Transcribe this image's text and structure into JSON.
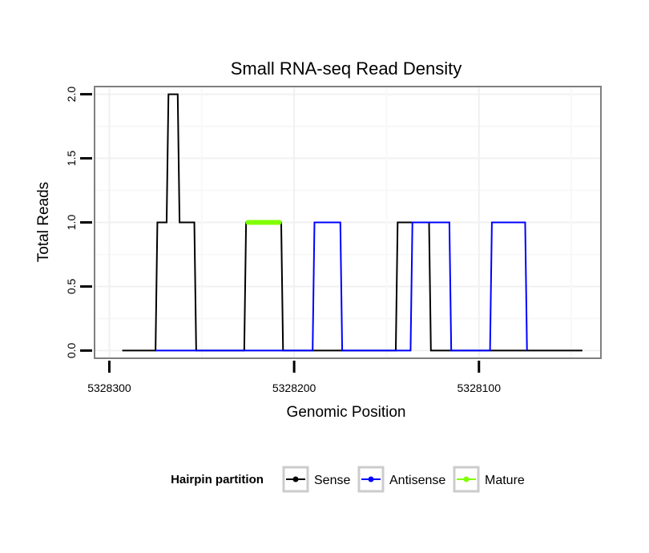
{
  "chart_data": {
    "type": "line",
    "title": "Small RNA-seq Read Density",
    "xlabel": "Genomic Position",
    "ylabel": "Total Reads",
    "xlim": [
      5328308,
      5328034
    ],
    "ylim": [
      -0.06,
      2.06
    ],
    "x_ticks": [
      5328300,
      5328200,
      5328100
    ],
    "x_tick_labels": [
      "5328300",
      "5328200",
      "5328100"
    ],
    "y_ticks": [
      0.0,
      0.5,
      1.0,
      1.5,
      2.0
    ],
    "y_tick_labels": [
      "0.0",
      "0.5",
      "1.0",
      "1.5",
      "2.0"
    ],
    "grid": true,
    "legend": {
      "title": "Hairpin partition",
      "position": "bottom",
      "entries": [
        "Sense",
        "Antisense",
        "Mature"
      ]
    },
    "series": [
      {
        "name": "Sense",
        "color": "#000000",
        "x": [
          5328293,
          5328275,
          5328274,
          5328269,
          5328268,
          5328263,
          5328262,
          5328254,
          5328253,
          5328227,
          5328226,
          5328207,
          5328206,
          5328150,
          5328149,
          5328145,
          5328144,
          5328127,
          5328126,
          5328044
        ],
        "y": [
          0,
          0,
          1,
          1,
          2,
          2,
          1,
          1,
          0,
          0,
          1,
          1,
          0,
          0,
          0,
          0,
          1,
          1,
          0,
          0
        ]
      },
      {
        "name": "Antisense",
        "color": "#0000ff",
        "x": [
          5328275,
          5328254,
          5328227,
          5328207,
          5328190,
          5328189,
          5328175,
          5328174,
          5328137,
          5328136,
          5328116,
          5328115,
          5328094,
          5328093,
          5328075,
          5328074
        ],
        "y": [
          0,
          0,
          0,
          0,
          0,
          1,
          1,
          0,
          0,
          1,
          1,
          0,
          0,
          1,
          1,
          0
        ]
      },
      {
        "name": "Mature",
        "color": "#7fff00",
        "x": [
          5328225,
          5328208
        ],
        "y": [
          1,
          1
        ]
      }
    ]
  },
  "colors": {
    "panel_border": "#7f7f7f",
    "grid_major": "#f0f0f0",
    "grid_minor": "#f8f8f8",
    "legend_key_border": "#cccccc"
  }
}
